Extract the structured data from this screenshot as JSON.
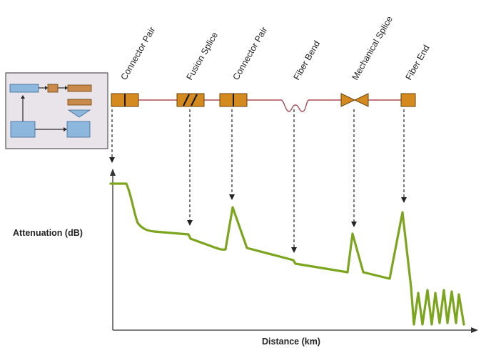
{
  "events": [
    {
      "id": "connector-pair-1",
      "label": "Connector Pair"
    },
    {
      "id": "fusion-splice",
      "label": "Fusion Splice"
    },
    {
      "id": "connector-pair-2",
      "label": "Connector Pair"
    },
    {
      "id": "fiber-bend",
      "label": "Fiber Bend"
    },
    {
      "id": "mechanical-splice",
      "label": "Mechanical Splice"
    },
    {
      "id": "fiber-end",
      "label": "Fiber End"
    }
  ],
  "axes": {
    "y_label": "Attenuation (dB)",
    "x_label": "Distance (km)"
  },
  "colors": {
    "trace": "#7aa51c",
    "fiber_line": "#b04a55",
    "component_fill": "#d48a1e",
    "component_stroke": "#6b4208",
    "otdr_box_fill": "#e9e4ea",
    "otdr_box_stroke": "#555555",
    "otdr_block_blue": "#8db7dd",
    "otdr_block_orange": "#c98a4b",
    "axis": "#333333"
  }
}
